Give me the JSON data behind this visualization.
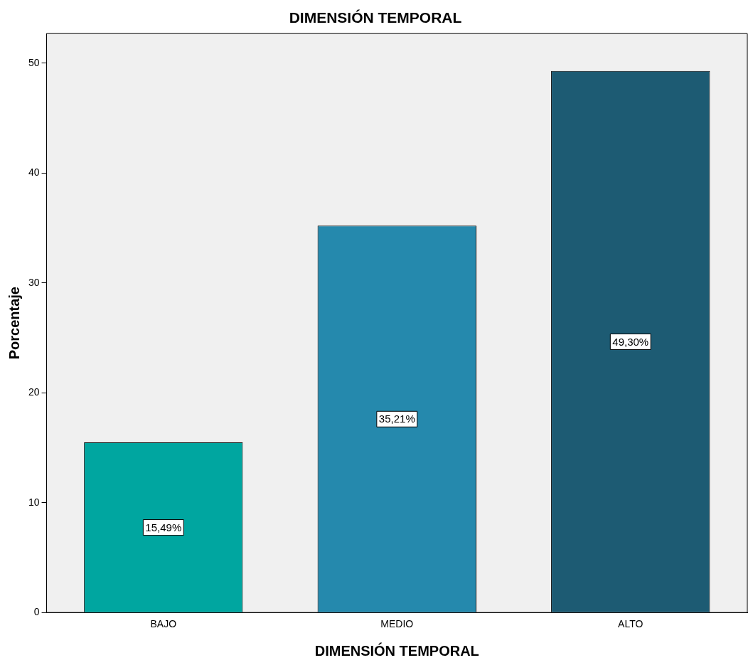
{
  "chart_data": {
    "type": "bar",
    "title": "DIMENSIÓN TEMPORAL",
    "xlabel": "DIMENSIÓN TEMPORAL",
    "ylabel": "Porcentaje",
    "categories": [
      "BAJO",
      "MEDIO",
      "ALTO"
    ],
    "values": [
      15.49,
      35.21,
      49.3
    ],
    "colors": [
      "#00a6a0",
      "#2589ad",
      "#1d5b73"
    ],
    "value_labels": [
      "15,49%",
      "35,21%",
      "49,30%"
    ],
    "ylim": [
      0,
      52.7
    ],
    "yticks": [
      0,
      10,
      20,
      30,
      40,
      50
    ]
  }
}
